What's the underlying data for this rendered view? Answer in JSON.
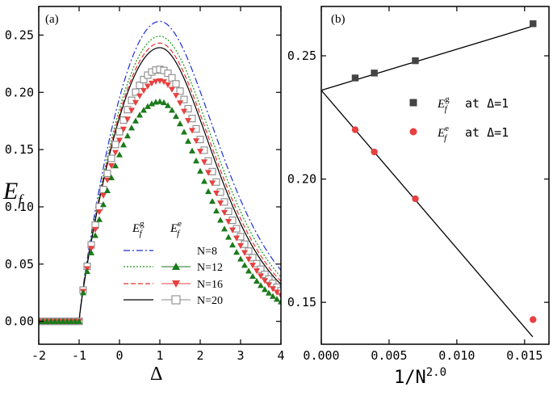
{
  "chart_data": [
    {
      "type": "line",
      "panel_label": "(a)",
      "xlabel": "Δ",
      "ylabel": {
        "base": "E",
        "sub": "f"
      },
      "xlim": [
        -2,
        4
      ],
      "ylim": [
        -0.02,
        0.275
      ],
      "xticks": [
        -2,
        -1,
        0,
        1,
        2,
        3,
        4
      ],
      "xtick_labels": [
        "-2",
        "-1",
        "0",
        "1",
        "2",
        "3",
        "4"
      ],
      "yticks": [
        0.0,
        0.05,
        0.1,
        0.15,
        0.2,
        0.25
      ],
      "ytick_labels": [
        "0.00",
        "0.05",
        "0.10",
        "0.15",
        "0.20",
        "0.25"
      ],
      "legend": {
        "placement": "lower-center",
        "header_line": {
          "base": "E",
          "sub": "f",
          "sup": "g"
        },
        "header_marker": {
          "base": "E",
          "sub": "f",
          "sup": "e"
        },
        "entries": [
          "N=8",
          "N=12",
          "N=16",
          "N=20"
        ]
      },
      "series": [
        {
          "name": "N=8",
          "kind": "ground",
          "style": "dash-dot",
          "color": "#1f2fd6",
          "peak": 0.262,
          "left_width": 0.85,
          "right_width": 1.62
        },
        {
          "name": "N=12",
          "kind": "ground",
          "style": "dotted",
          "color": "#1a9a1a",
          "peak": 0.249,
          "left_width": 0.85,
          "right_width": 1.57
        },
        {
          "name": "N=16",
          "kind": "ground",
          "style": "dashed",
          "color": "#ee3333",
          "peak": 0.243,
          "left_width": 0.85,
          "right_width": 1.53
        },
        {
          "name": "N=20",
          "kind": "ground",
          "style": "solid",
          "color": "#000000",
          "peak": 0.239,
          "left_width": 0.85,
          "right_width": 1.5
        },
        {
          "name": "N=12",
          "kind": "excited",
          "marker": "triangle-up",
          "color": "#1a7a1a",
          "peak": 0.192,
          "left_width": 0.8,
          "right_width": 1.33
        },
        {
          "name": "N=16",
          "kind": "excited",
          "marker": "triangle-down",
          "color": "#e84040",
          "peak": 0.21,
          "left_width": 0.82,
          "right_width": 1.4
        },
        {
          "name": "N=20",
          "kind": "excited",
          "marker": "open-square",
          "color": "#8a8a8a",
          "peak": 0.22,
          "left_width": 0.82,
          "right_width": 1.45
        }
      ]
    },
    {
      "type": "scatter",
      "panel_label": "(b)",
      "xlabel": {
        "base": "1/N",
        "sup": "2.0"
      },
      "ylabel": "",
      "xlim": [
        0.0,
        0.0168
      ],
      "ylim": [
        0.133,
        0.27
      ],
      "xticks": [
        0.0,
        0.005,
        0.01,
        0.015
      ],
      "xtick_labels": [
        "0.000",
        "0.005",
        "0.010",
        "0.015"
      ],
      "yticks": [
        0.15,
        0.2,
        0.25
      ],
      "ytick_labels": [
        "0.15",
        "0.20",
        "0.25"
      ],
      "legend": {
        "placement": "upper-right",
        "suffix": "at Δ=1"
      },
      "series": [
        {
          "name": "E_f^g at Δ=1",
          "label": {
            "base": "E",
            "sub": "f",
            "sup": "g"
          },
          "marker": "square",
          "color": "#444444",
          "x": [
            0.0025,
            0.00391,
            0.00694,
            0.015625
          ],
          "y": [
            0.241,
            0.243,
            0.248,
            0.263
          ],
          "fit": {
            "x": [
              0.0,
              0.0156
            ],
            "y": [
              0.236,
              0.262
            ]
          }
        },
        {
          "name": "E_f^e at Δ=1",
          "label": {
            "base": "E",
            "sub": "f",
            "sup": "e"
          },
          "marker": "circle",
          "color": "#e84040",
          "x": [
            0.0025,
            0.00391,
            0.00694,
            0.015625
          ],
          "y": [
            0.22,
            0.211,
            0.192,
            0.143
          ],
          "fit": {
            "x": [
              0.0,
              0.0156
            ],
            "y": [
              0.236,
              0.136
            ]
          }
        }
      ]
    }
  ]
}
